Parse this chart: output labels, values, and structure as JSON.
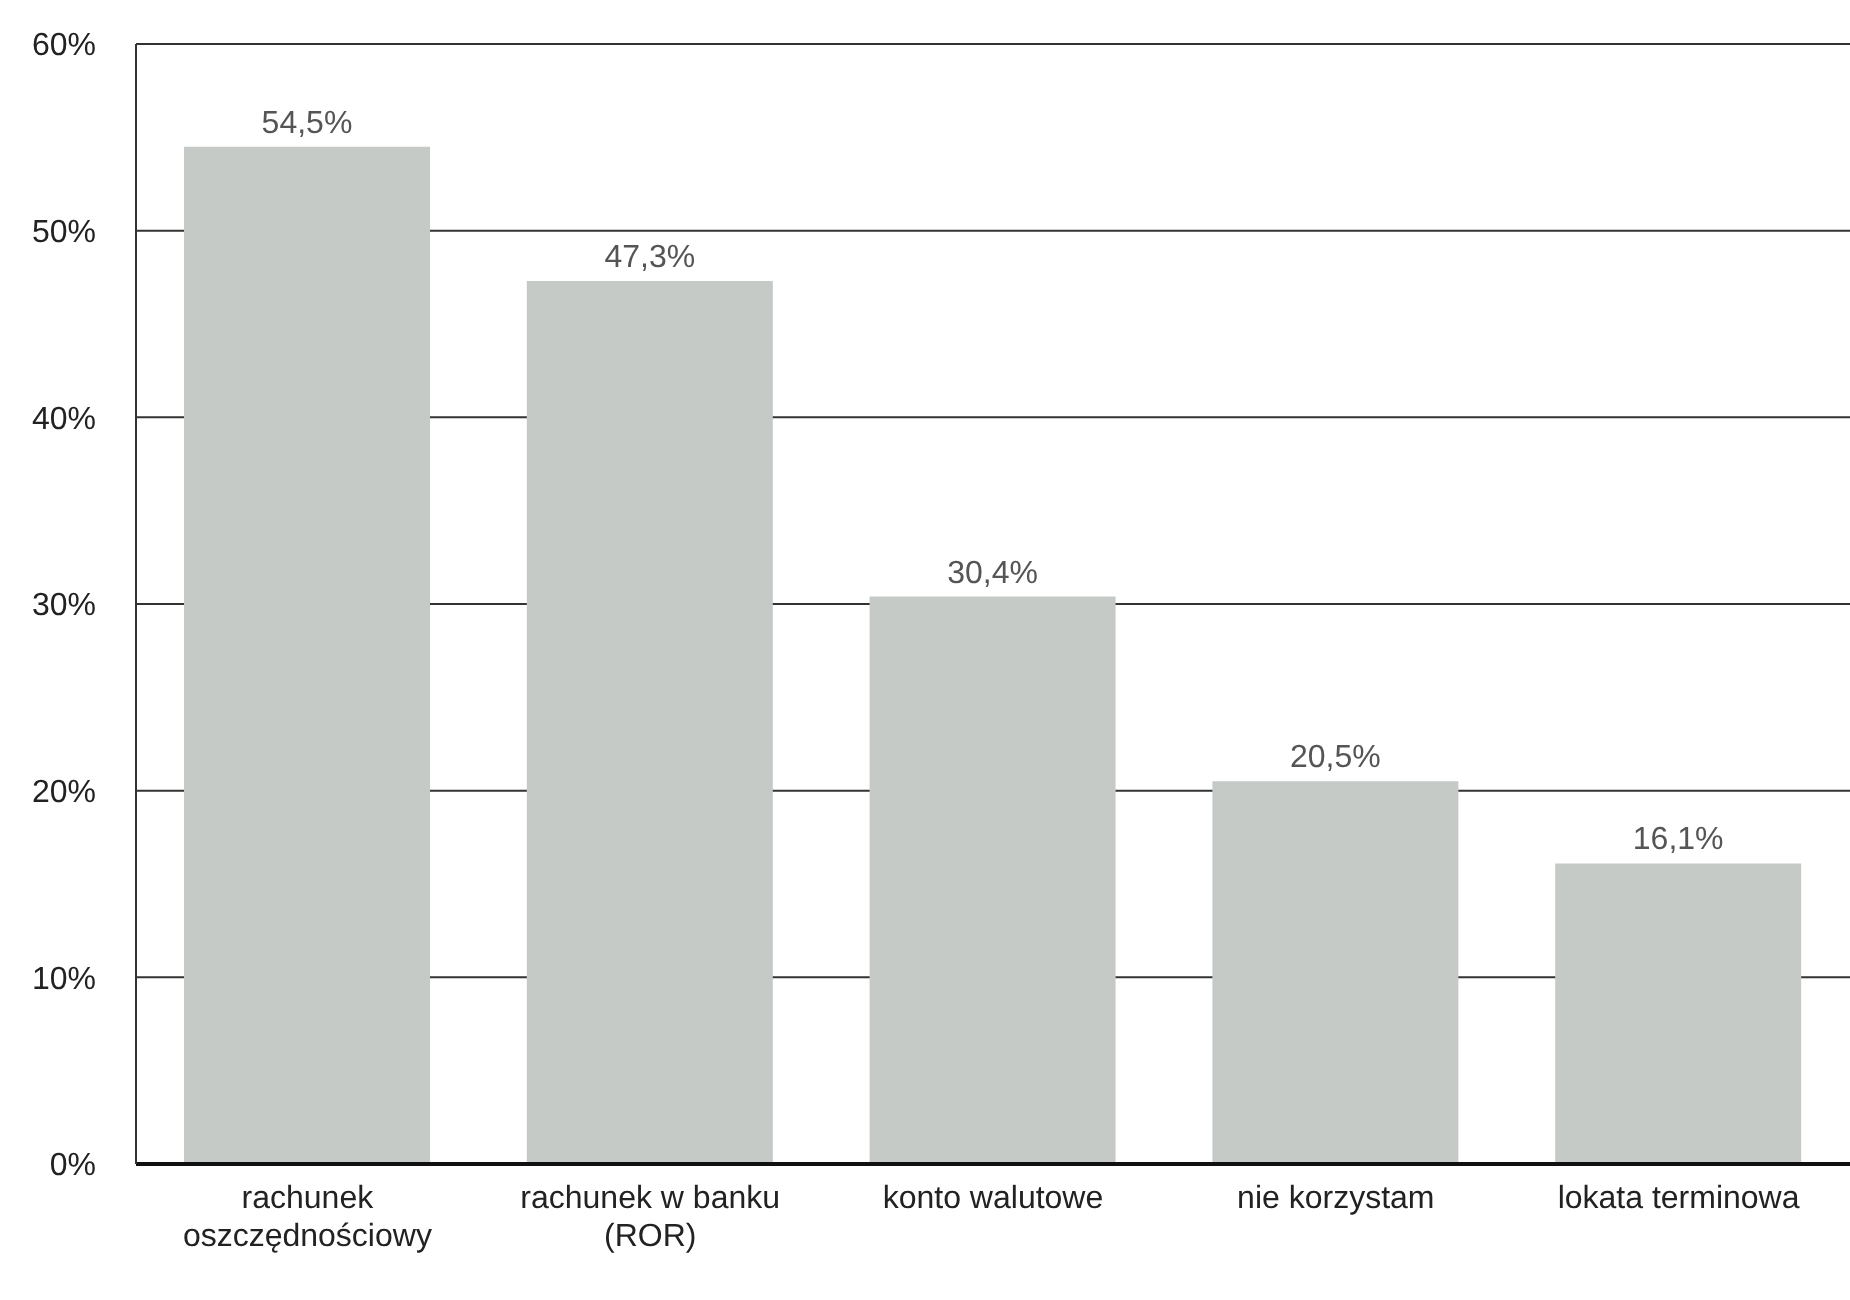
{
  "chart_data": {
    "type": "bar",
    "categories": [
      "rachunek oszczędnościowy",
      "rachunek w banku (ROR)",
      "konto walutowe",
      "nie korzystam",
      "lokata terminowa"
    ],
    "values": [
      54.5,
      47.3,
      30.4,
      20.5,
      16.1
    ],
    "value_labels": [
      "54,5%",
      "47,3%",
      "30,4%",
      "20,5%",
      "16,1%"
    ],
    "color": "#c5cac6",
    "ylim": [
      0,
      60
    ],
    "yticks": [
      {
        "value": 0,
        "label": "0%"
      },
      {
        "value": 10,
        "label": "10%"
      },
      {
        "value": 20,
        "label": "20%"
      },
      {
        "value": 30,
        "label": "30%"
      },
      {
        "value": 40,
        "label": "40%"
      },
      {
        "value": 50,
        "label": "50%"
      },
      {
        "value": 60,
        "label": "60%"
      }
    ],
    "grid": "y"
  }
}
